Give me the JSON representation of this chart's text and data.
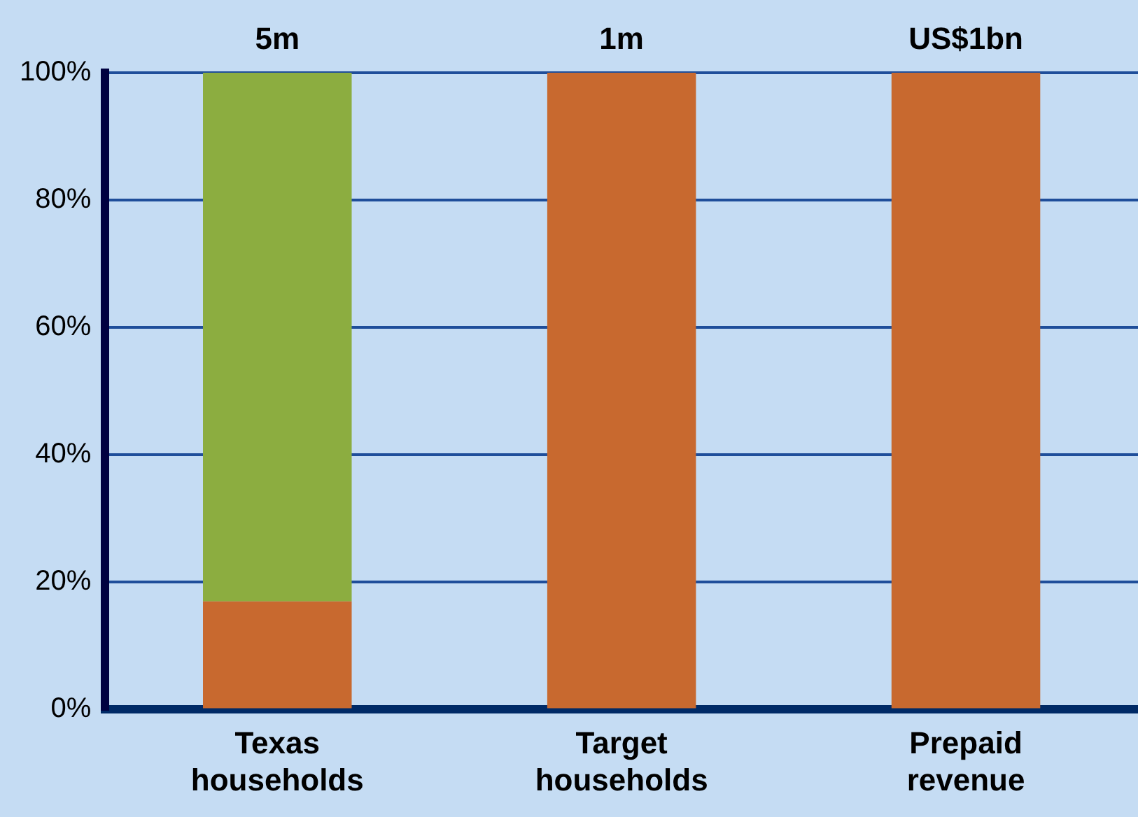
{
  "chart_data": {
    "type": "bar",
    "stacked": true,
    "categories": [
      "Texas households",
      "Target households",
      "Prepaid revenue"
    ],
    "series": [
      {
        "color": "#c8692f",
        "values": [
          17,
          100,
          100
        ]
      },
      {
        "color": "#8cad40",
        "values": [
          83,
          null,
          null
        ]
      }
    ],
    "annotations": [
      {
        "text": "5m",
        "x": "Texas households",
        "y": 100
      },
      {
        "text": "1m",
        "x": "Target households",
        "y": 100
      },
      {
        "text": "US$1bn",
        "x": "Prepaid revenue",
        "y": 100
      }
    ],
    "ylim": [
      0,
      100
    ],
    "yticks": [
      {
        "value": 0,
        "label": "0%"
      },
      {
        "value": 20,
        "label": "20%"
      },
      {
        "value": 40,
        "label": "40%"
      },
      {
        "value": 60,
        "label": "60%"
      },
      {
        "value": 80,
        "label": "80%"
      },
      {
        "value": 100,
        "label": "100%"
      }
    ],
    "grid": "y",
    "legend": false
  }
}
